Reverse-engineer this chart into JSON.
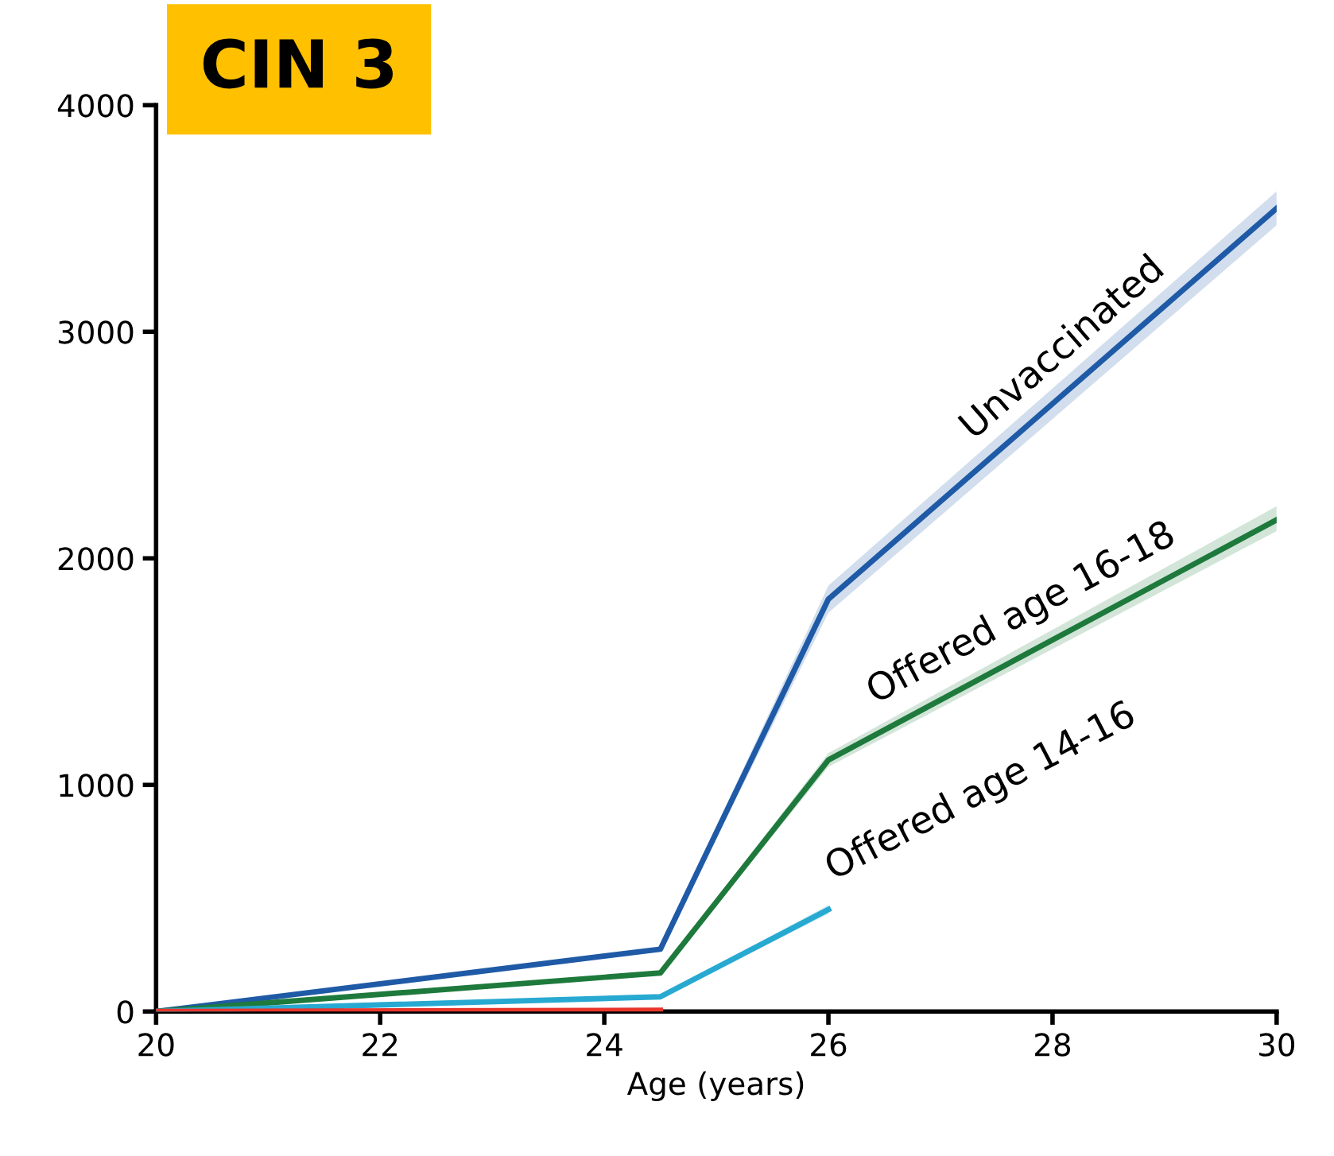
{
  "chart_data": {
    "type": "line",
    "title": "CIN 3",
    "xlabel": "Age (years)",
    "x": [
      20,
      24.5,
      26,
      30
    ],
    "xlim": [
      20,
      30
    ],
    "xticks": [
      20,
      22,
      24,
      26,
      28,
      30
    ],
    "ylim": [
      0,
      4000
    ],
    "yticks": [
      0,
      1000,
      2000,
      3000,
      4000
    ],
    "grid": false,
    "legend": false,
    "marker": "none",
    "line_style": "solid",
    "series": [
      {
        "name": "Unvaccinated",
        "color": "#1f5aa6",
        "values": [
          0,
          275,
          1820,
          3545
        ],
        "lower": [
          0,
          265,
          1760,
          3470
        ],
        "upper": [
          0,
          285,
          1880,
          3620
        ]
      },
      {
        "name": "Offered age 16-18",
        "color": "#1e7a3c",
        "values": [
          0,
          170,
          1110,
          2170
        ],
        "lower": [
          0,
          163,
          1080,
          2120
        ],
        "upper": [
          0,
          177,
          1140,
          2230
        ]
      },
      {
        "name": "Offered age 14-16",
        "color": "#27a9d1",
        "x": [
          20,
          24.5,
          26
        ],
        "values": [
          0,
          65,
          450
        ],
        "lower": [
          0,
          60,
          430
        ],
        "upper": [
          0,
          70,
          470
        ]
      },
      {
        "color": "#e8362c",
        "x": [
          20,
          24.5
        ],
        "values": [
          0,
          5
        ]
      }
    ]
  }
}
